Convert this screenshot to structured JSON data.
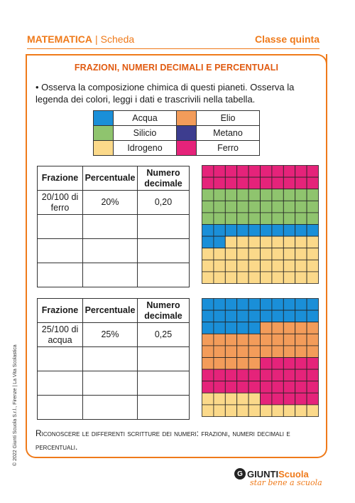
{
  "header": {
    "subject": "MATEMATICA",
    "type": "Scheda",
    "grade": "Classe quinta"
  },
  "title": "FRAZIONI, NUMERI DECIMALI E PERCENTUALI",
  "instruction": "• Osserva la composizione chimica di questi pianeti. Osserva la legenda dei colori, leggi i dati e trascrivili nella tabella.",
  "legend": [
    {
      "label": "Acqua",
      "color": "#1a8fd8"
    },
    {
      "label": "Elio",
      "color": "#f39c5a"
    },
    {
      "label": "Silicio",
      "color": "#8fc46e"
    },
    {
      "label": "Metano",
      "color": "#3d3d8f"
    },
    {
      "label": "Idrogeno",
      "color": "#fbd98a"
    },
    {
      "label": "Ferro",
      "color": "#e5237a"
    }
  ],
  "table_headers": {
    "fraction": "Frazione",
    "percent": "Percentuale",
    "decimal": "Numero decimale"
  },
  "table1": {
    "fraction": "20/100 di ferro",
    "percent": "20%",
    "decimal": "0,20"
  },
  "table2": {
    "fraction": "25/100 di acqua",
    "percent": "25%",
    "decimal": "0,25"
  },
  "grid1_composition": {
    "Ferro": 20,
    "Silicio": 30,
    "Acqua": 13,
    "Idrogeno": 37
  },
  "grid2_composition": {
    "Acqua": 25,
    "Elio": 25,
    "Ferro": 30,
    "Idrogeno": 20
  },
  "footer": "Riconoscere le differenti scritture dei numeri: frazioni, numeri decimali e percentuali.",
  "copyright": "© 2022 Giunti Scuola S.r.l., Firenze | La Vita Scolastica",
  "brand": {
    "name_a": "GIUNTI",
    "name_b": "Scuola",
    "tagline": "star bene a scuola"
  }
}
